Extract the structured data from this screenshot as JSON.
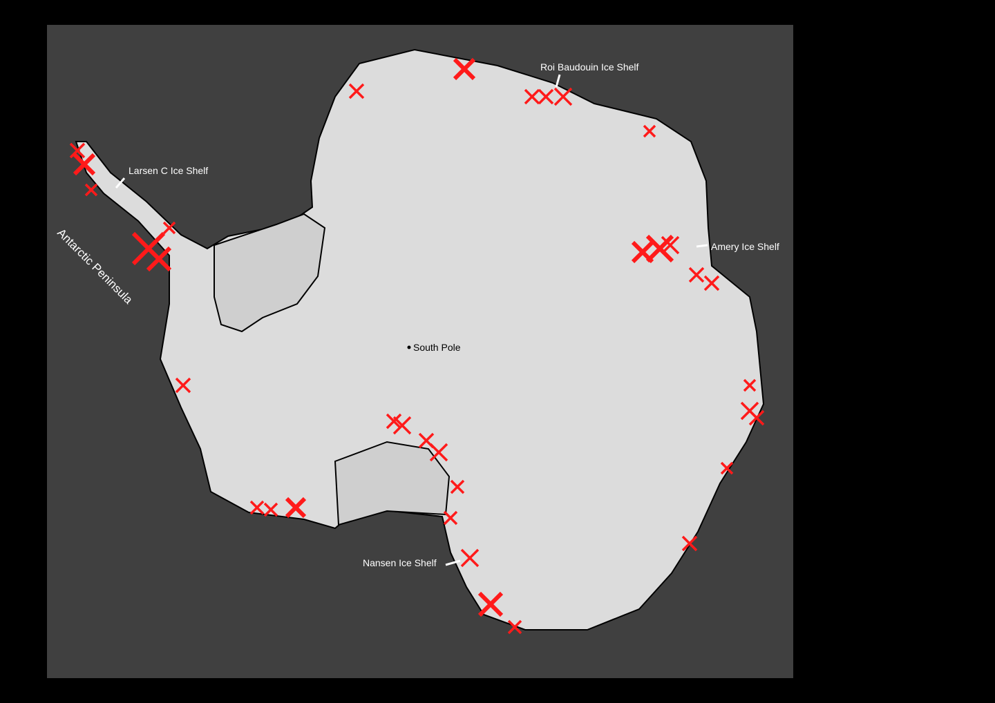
{
  "labels": {
    "roi_baudouin": "Roi Baudouin Ice Shelf",
    "larsen_c": "Larsen C Ice Shelf",
    "antarctic_peninsula": "Antarctic Peninsula",
    "amery": "Amery Ice Shelf",
    "south_pole": "South Pole",
    "nansen": "Nansen Ice Shelf"
  },
  "colors": {
    "ocean": "#404040",
    "ice": "#d9d9d9",
    "marker": "#ff1a1a",
    "coastline": "#000000",
    "label_on_ocean": "#ffffff",
    "label_on_ice": "#000000"
  },
  "marker_icon": "x-cross"
}
